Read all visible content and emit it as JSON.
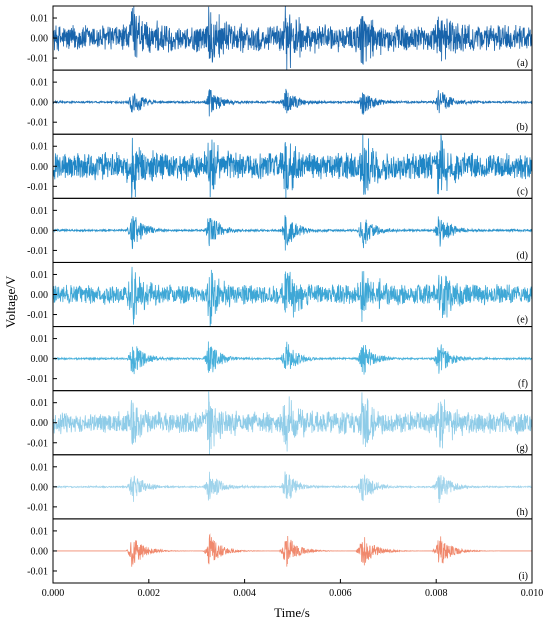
{
  "chart_data": {
    "type": "line",
    "layout": "9 vertically stacked panels sharing one time axis",
    "xlabel": "Time/s",
    "ylabel": "Voltage/V",
    "xlim": [
      0,
      0.01
    ],
    "x_ticks": [
      "0.000",
      "0.002",
      "0.004",
      "0.006",
      "0.008",
      "0.010"
    ],
    "y_ticks": [
      "0.01",
      "0.00",
      "-0.01"
    ],
    "ylim": [
      -0.016,
      0.016
    ],
    "grid": false,
    "impulse_times": [
      0.00165,
      0.00325,
      0.00485,
      0.00645,
      0.00805
    ],
    "panels": [
      {
        "tag": "(a)",
        "color": "#1864ab",
        "noise_amplitude": 0.0075,
        "impulse_peak": 0.016
      },
      {
        "tag": "(b)",
        "color": "#1c72b8",
        "noise_amplitude": 0.0006,
        "impulse_peak": 0.0075
      },
      {
        "tag": "(c)",
        "color": "#1f86c6",
        "noise_amplitude": 0.0075,
        "impulse_peak": 0.016
      },
      {
        "tag": "(d)",
        "color": "#2a93cc",
        "noise_amplitude": 0.0006,
        "impulse_peak": 0.01
      },
      {
        "tag": "(e)",
        "color": "#3ea7d6",
        "noise_amplitude": 0.0055,
        "impulse_peak": 0.016
      },
      {
        "tag": "(f)",
        "color": "#48b0db",
        "noise_amplitude": 0.0005,
        "impulse_peak": 0.01
      },
      {
        "tag": "(g)",
        "color": "#8fcce8",
        "noise_amplitude": 0.006,
        "impulse_peak": 0.015
      },
      {
        "tag": "(h)",
        "color": "#9fd3eb",
        "noise_amplitude": 0.0004,
        "impulse_peak": 0.009
      },
      {
        "tag": "(i)",
        "color": "#f0896d",
        "noise_amplitude": 0.0,
        "impulse_peak": 0.0095
      }
    ]
  }
}
